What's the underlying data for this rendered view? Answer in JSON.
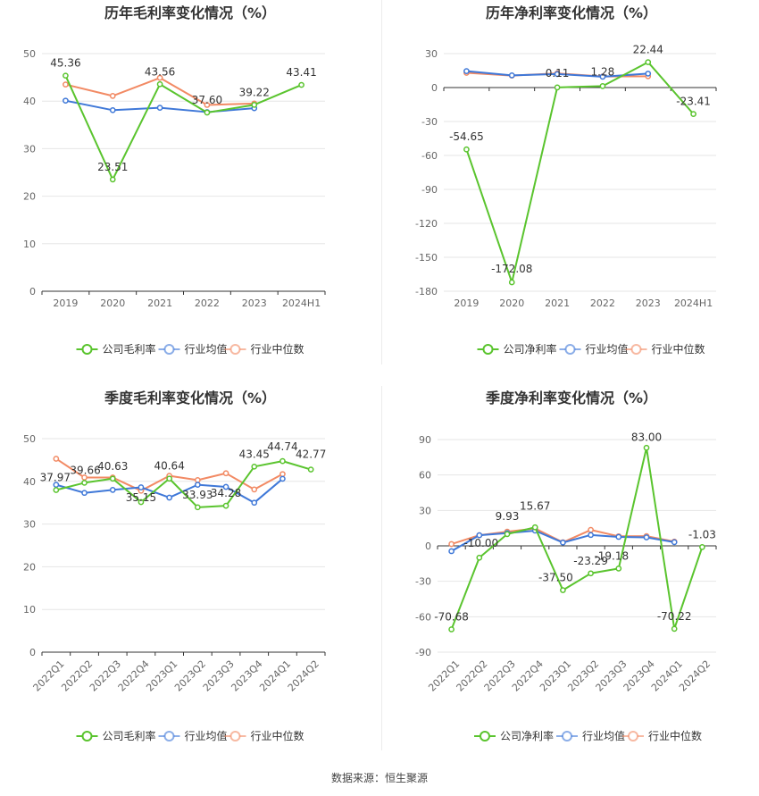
{
  "footer": {
    "source_label": "数据来源：",
    "source_value": "恒生聚源"
  },
  "colors": {
    "company": "#5ac42e",
    "industry_mean": "#3f78d8",
    "industry_median": "#f28a64",
    "grid": "#e6e6e6",
    "axis": "#333333",
    "tick_label": "#666666",
    "title": "#333333"
  },
  "chart_data": [
    {
      "id": "annual-gross",
      "type": "line",
      "title": "历年毛利率变化情况（%）",
      "categories": [
        "2019",
        "2020",
        "2021",
        "2022",
        "2023",
        "2024H1"
      ],
      "ylim": [
        0,
        50
      ],
      "yticks": [
        0,
        10,
        20,
        30,
        40,
        50
      ],
      "rotate_x_labels": false,
      "grid": true,
      "legend_position": "bottom",
      "series": [
        {
          "name": "公司毛利率",
          "key": "company",
          "values": [
            45.36,
            23.51,
            43.56,
            37.6,
            39.22,
            43.41
          ],
          "labels": [
            "45.36",
            "23.51",
            "43.56",
            "37.60",
            "39.22",
            "43.41"
          ]
        },
        {
          "name": "行业均值",
          "key": "industry_mean",
          "values": [
            40.1,
            38.1,
            38.6,
            37.7,
            38.5,
            null
          ]
        },
        {
          "name": "行业中位数",
          "key": "industry_median",
          "values": [
            43.5,
            41.1,
            44.9,
            39.2,
            39.5,
            null
          ]
        }
      ]
    },
    {
      "id": "annual-net",
      "type": "line",
      "title": "历年净利率变化情况（%）",
      "categories": [
        "2019",
        "2020",
        "2021",
        "2022",
        "2023",
        "2024H1"
      ],
      "ylim": [
        -180,
        30
      ],
      "yticks": [
        -180,
        -150,
        -120,
        -90,
        -60,
        -30,
        0,
        30
      ],
      "rotate_x_labels": false,
      "grid": true,
      "legend_position": "bottom",
      "series": [
        {
          "name": "公司净利率",
          "key": "company",
          "values": [
            -54.65,
            -172.08,
            0.11,
            1.28,
            22.44,
            -23.41
          ],
          "labels": [
            "-54.65",
            "-172.08",
            "0.11",
            "1.28",
            "22.44",
            "-23.41"
          ]
        },
        {
          "name": "行业均值",
          "key": "industry_mean",
          "values": [
            14.5,
            10.8,
            11.9,
            9.6,
            12.3,
            null
          ]
        },
        {
          "name": "行业中位数",
          "key": "industry_median",
          "values": [
            13.0,
            10.6,
            12.5,
            9.8,
            10.0,
            null
          ]
        }
      ]
    },
    {
      "id": "quarterly-gross",
      "type": "line",
      "title": "季度毛利率变化情况（%）",
      "categories": [
        "2022Q1",
        "2022Q2",
        "2022Q3",
        "2022Q4",
        "2023Q1",
        "2023Q2",
        "2023Q3",
        "2023Q4",
        "2024Q1",
        "2024Q2"
      ],
      "ylim": [
        0,
        50
      ],
      "yticks": [
        0,
        10,
        20,
        30,
        40,
        50
      ],
      "rotate_x_labels": true,
      "grid": true,
      "legend_position": "bottom",
      "series": [
        {
          "name": "公司毛利率",
          "key": "company",
          "values": [
            37.97,
            39.66,
            40.63,
            35.15,
            40.64,
            33.93,
            34.28,
            43.45,
            44.74,
            42.77
          ],
          "labels": [
            "37.97",
            "39.66",
            "40.63",
            "35.15",
            "40.64",
            "33.93",
            "34.28",
            "43.45",
            "44.74",
            "42.77"
          ]
        },
        {
          "name": "行业均值",
          "key": "industry_mean",
          "values": [
            39.2,
            37.3,
            38.0,
            38.6,
            36.2,
            39.2,
            38.7,
            35.0,
            40.6,
            null
          ]
        },
        {
          "name": "行业中位数",
          "key": "industry_median",
          "values": [
            45.3,
            40.9,
            40.9,
            37.8,
            41.3,
            40.3,
            41.9,
            38.1,
            41.7,
            null
          ]
        }
      ]
    },
    {
      "id": "quarterly-net",
      "type": "line",
      "title": "季度净利率变化情况（%）",
      "categories": [
        "2022Q1",
        "2022Q2",
        "2022Q3",
        "2022Q4",
        "2023Q1",
        "2023Q2",
        "2023Q3",
        "2023Q4",
        "2024Q1",
        "2024Q2"
      ],
      "ylim": [
        -90,
        90
      ],
      "yticks": [
        -90,
        -60,
        -30,
        0,
        30,
        60,
        90
      ],
      "rotate_x_labels": true,
      "grid": true,
      "legend_position": "bottom",
      "series": [
        {
          "name": "公司净利率",
          "key": "company",
          "values": [
            -70.68,
            -10.0,
            9.93,
            15.67,
            -37.5,
            -23.29,
            -19.18,
            83.0,
            -70.22,
            -1.03
          ],
          "labels": [
            "-70.68",
            "-10.00",
            "9.93",
            "15.67",
            "-37.50",
            "-23.29",
            "-19.18",
            "83.00",
            "-70.22",
            "-1.03"
          ]
        },
        {
          "name": "行业均值",
          "key": "industry_mean",
          "values": [
            -4.5,
            9.0,
            10.8,
            12.9,
            2.8,
            9.2,
            7.6,
            7.2,
            3.1,
            null
          ]
        },
        {
          "name": "行业中位数",
          "key": "industry_median",
          "values": [
            1.5,
            9.0,
            12.0,
            14.7,
            3.0,
            13.5,
            8.1,
            8.2,
            3.6,
            null
          ]
        }
      ]
    }
  ]
}
